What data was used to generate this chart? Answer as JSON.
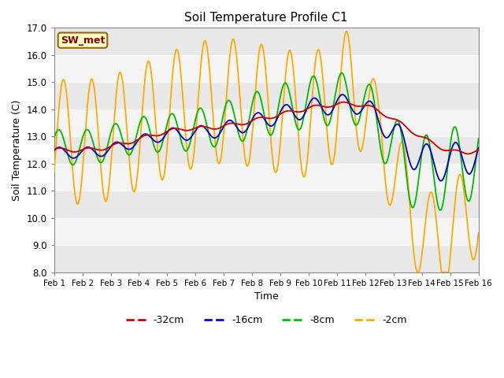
{
  "title": "Soil Temperature Profile C1",
  "xlabel": "Time",
  "ylabel": "Soil Temperature (C)",
  "ylim": [
    8.0,
    17.0
  ],
  "yticks": [
    8.0,
    9.0,
    10.0,
    11.0,
    12.0,
    13.0,
    14.0,
    15.0,
    16.0,
    17.0
  ],
  "xtick_labels": [
    "Feb 1",
    "Feb 2",
    "Feb 3",
    "Feb 4",
    "Feb 5",
    "Feb 6",
    "Feb 7",
    "Feb 8",
    "Feb 9",
    "Feb 10",
    "Feb 11",
    "Feb 12",
    "Feb 13",
    "Feb 14",
    "Feb 15",
    "Feb 16"
  ],
  "colors": {
    "red": "#cc0000",
    "blue": "#0000cc",
    "green": "#00bb00",
    "orange": "#ffaa00",
    "bg_bands": [
      "#e8e8e8",
      "#f4f4f4"
    ]
  },
  "annotation_box": {
    "text": "SW_met",
    "facecolor": "#ffffcc",
    "edgecolor": "#996600",
    "textcolor": "#880000"
  }
}
